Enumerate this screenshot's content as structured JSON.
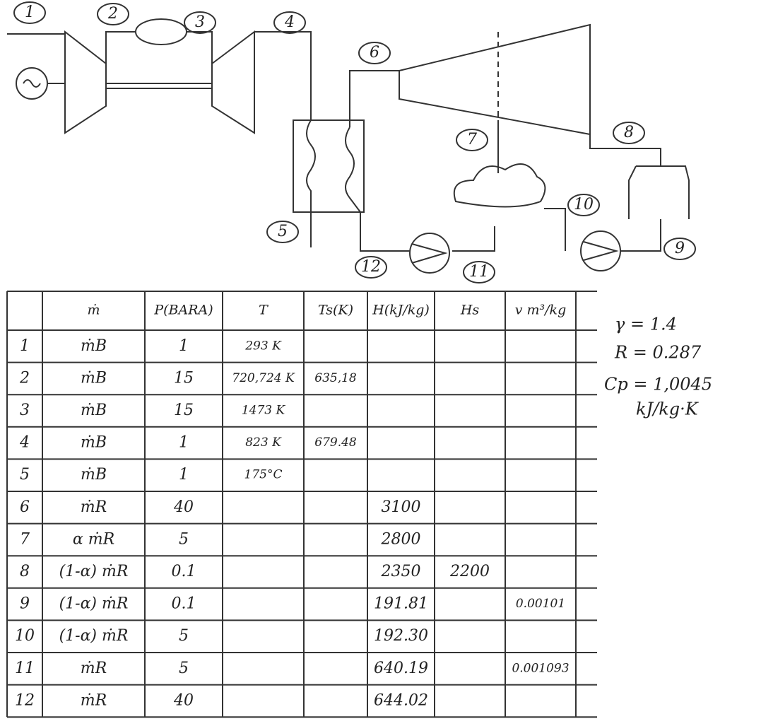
{
  "diagram": {
    "nodes": [
      "1",
      "2",
      "3",
      "4",
      "5",
      "6",
      "7",
      "8",
      "9",
      "10",
      "11",
      "12"
    ]
  },
  "table": {
    "header": {
      "m": "ṁ",
      "p": "P(BARA)",
      "t": "T",
      "ts": "Ts(K)",
      "h": "H(kJ/kg)",
      "hs": "Hs",
      "v": "v m³/kg"
    },
    "rows": [
      {
        "n": "1",
        "m": "ṁB",
        "p": "1",
        "t": "293 K"
      },
      {
        "n": "2",
        "m": "ṁB",
        "p": "15",
        "t": "720,724 K",
        "ts": "635,18"
      },
      {
        "n": "3",
        "m": "ṁB",
        "p": "15",
        "t": "1473 K"
      },
      {
        "n": "4",
        "m": "ṁB",
        "p": "1",
        "t": "823 K",
        "ts": "679.48"
      },
      {
        "n": "5",
        "m": "ṁB",
        "p": "1",
        "t": "175°C"
      },
      {
        "n": "6",
        "m": "ṁR",
        "p": "40",
        "h": "3100"
      },
      {
        "n": "7",
        "m": "α ṁR",
        "p": "5",
        "h": "2800"
      },
      {
        "n": "8",
        "m": "(1-α) ṁR",
        "p": "0.1",
        "h": "2350",
        "hs": "2200"
      },
      {
        "n": "9",
        "m": "(1-α) ṁR",
        "p": "0.1",
        "h": "191.81",
        "v": "0.00101"
      },
      {
        "n": "10",
        "m": "(1-α) ṁR",
        "p": "5",
        "h": "192.30"
      },
      {
        "n": "11",
        "m": "ṁR",
        "p": "5",
        "h": "640.19",
        "v": "0.001093"
      },
      {
        "n": "12",
        "m": "ṁR",
        "p": "40",
        "h": "644.02"
      }
    ]
  },
  "constants": [
    "γ = 1.4",
    "R = 0.287",
    "Cp = 1,0045",
    "kJ/kg·K"
  ]
}
